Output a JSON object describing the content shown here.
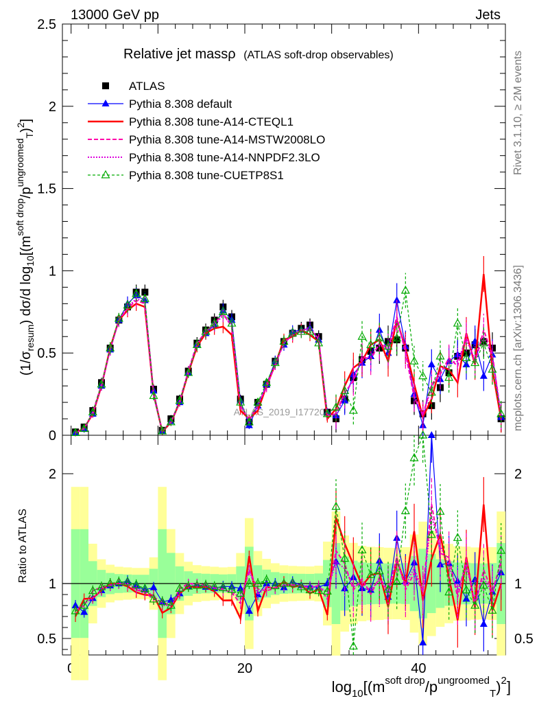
{
  "header": {
    "left": "13000 GeV pp",
    "right": "Jets"
  },
  "side_labels": {
    "rivet": "Rivet 3.1.10, ≥ 2M events",
    "mcplots": "mcplots.cern.ch [arXiv:1306.3436]"
  },
  "watermark": "ATLAS_2019_I1772062",
  "chart_data": {
    "type": "line",
    "title": "Relative jet massρ",
    "subtitle": "(ATLAS soft-drop observables)",
    "ylabel": "(1/σresum) dσ/d log10[(m^soft drop/pT^ungroomed)^2]",
    "ratio_ylabel": "Ratio to ATLAS",
    "xlabel": "log10[(m^soft drop/pT^ungroomed)^2]",
    "xlim": [
      -1,
      50
    ],
    "ylim": [
      0,
      2.5
    ],
    "ratio_ylim": [
      0.35,
      2.35
    ],
    "x_ticks": [
      0,
      20,
      40
    ],
    "y_ticks": [
      "0",
      "0.5",
      "1",
      "1.5",
      "2",
      "2.5"
    ],
    "ratio_ticks": [
      "0.5",
      "1",
      "2"
    ],
    "legend": [
      "ATLAS",
      "Pythia 8.308 default",
      "Pythia 8.308 tune-A14-CTEQL1",
      "Pythia 8.308 tune-A14-MSTW2008LO",
      "Pythia 8.308 tune-A14-NNPDF2.3LO",
      "Pythia 8.308 tune-CUETP8S1"
    ],
    "x": [
      0.5,
      1.5,
      2.5,
      3.5,
      4.5,
      5.5,
      6.5,
      7.5,
      8.5,
      9.5,
      10.5,
      11.5,
      12.5,
      13.5,
      14.5,
      15.5,
      16.5,
      17.5,
      18.5,
      19.5,
      20.5,
      21.5,
      22.5,
      23.5,
      24.5,
      25.5,
      26.5,
      27.5,
      28.5,
      29.5,
      30.5,
      31.5,
      32.5,
      33.5,
      34.5,
      35.5,
      36.5,
      37.5,
      38.5,
      39.5,
      40.5,
      41.5,
      42.5,
      43.5,
      44.5,
      45.5,
      46.5,
      47.5,
      48.5,
      49.5
    ],
    "series": [
      {
        "name": "ATLAS",
        "color": "#000000",
        "values": [
          0.02,
          0.05,
          0.15,
          0.32,
          0.53,
          0.7,
          0.78,
          0.87,
          0.87,
          0.28,
          0.03,
          0.1,
          0.22,
          0.39,
          0.56,
          0.64,
          0.7,
          0.78,
          0.72,
          0.22,
          0.08,
          0.2,
          0.31,
          0.45,
          0.57,
          0.62,
          0.65,
          0.67,
          0.6,
          0.14,
          0.1,
          0.22,
          0.35,
          0.46,
          0.51,
          0.53,
          0.57,
          0.58,
          0.53,
          0.21,
          0.13,
          0.18,
          0.29,
          0.38,
          0.48,
          0.5,
          0.55,
          0.57,
          0.53,
          0.1
        ]
      },
      {
        "name": "Pythia 8.308 default",
        "color": "#0000ff",
        "values": [
          0.016,
          0.037,
          0.13,
          0.3,
          0.52,
          0.7,
          0.8,
          0.85,
          0.82,
          0.27,
          0.025,
          0.085,
          0.2,
          0.38,
          0.55,
          0.62,
          0.67,
          0.76,
          0.7,
          0.21,
          0.06,
          0.18,
          0.31,
          0.45,
          0.55,
          0.63,
          0.64,
          0.65,
          0.58,
          0.14,
          0.12,
          0.21,
          0.37,
          0.44,
          0.48,
          0.64,
          0.5,
          0.82,
          0.54,
          0.25,
          0.06,
          0.43,
          0.34,
          0.45,
          0.49,
          0.43,
          0.57,
          0.36,
          0.49,
          0.11
        ]
      },
      {
        "name": "Pythia 8.308 tune-A14-CTEQL1",
        "color": "#ff0000",
        "values": [
          0.014,
          0.043,
          0.13,
          0.3,
          0.53,
          0.7,
          0.76,
          0.8,
          0.78,
          0.25,
          0.022,
          0.078,
          0.2,
          0.38,
          0.54,
          0.62,
          0.65,
          0.66,
          0.61,
          0.15,
          0.1,
          0.15,
          0.3,
          0.43,
          0.58,
          0.6,
          0.64,
          0.61,
          0.57,
          0.1,
          0.16,
          0.3,
          0.41,
          0.45,
          0.55,
          0.58,
          0.45,
          0.7,
          0.53,
          0.31,
          0.11,
          0.22,
          0.42,
          0.4,
          0.32,
          0.62,
          0.43,
          0.98,
          0.4,
          0.1
        ]
      },
      {
        "name": "Pythia 8.308 tune-A14-MSTW2008LO",
        "color": "#ff00aa",
        "values": [
          0.015,
          0.04,
          0.14,
          0.31,
          0.52,
          0.7,
          0.77,
          0.82,
          0.8,
          0.24,
          0.025,
          0.08,
          0.21,
          0.39,
          0.56,
          0.63,
          0.68,
          0.74,
          0.66,
          0.18,
          0.09,
          0.19,
          0.29,
          0.43,
          0.56,
          0.61,
          0.64,
          0.64,
          0.59,
          0.12,
          0.13,
          0.26,
          0.33,
          0.48,
          0.46,
          0.56,
          0.53,
          0.72,
          0.5,
          0.23,
          0.12,
          0.31,
          0.37,
          0.47,
          0.42,
          0.61,
          0.44,
          0.64,
          0.49,
          0.12
        ]
      },
      {
        "name": "Pythia 8.308 tune-A14-NNPDF2.3LO",
        "color": "#dd00dd",
        "values": [
          0.015,
          0.041,
          0.13,
          0.3,
          0.52,
          0.7,
          0.78,
          0.83,
          0.81,
          0.25,
          0.024,
          0.08,
          0.2,
          0.39,
          0.55,
          0.63,
          0.67,
          0.73,
          0.67,
          0.19,
          0.09,
          0.18,
          0.3,
          0.43,
          0.56,
          0.62,
          0.63,
          0.66,
          0.58,
          0.13,
          0.12,
          0.25,
          0.34,
          0.46,
          0.48,
          0.55,
          0.52,
          0.7,
          0.52,
          0.24,
          0.12,
          0.29,
          0.39,
          0.44,
          0.45,
          0.58,
          0.46,
          0.6,
          0.48,
          0.12
        ]
      },
      {
        "name": "Pythia 8.308 tune-CUETP8S1",
        "color": "#00aa00",
        "values": [
          0.015,
          0.04,
          0.14,
          0.31,
          0.53,
          0.71,
          0.79,
          0.86,
          0.83,
          0.24,
          0.025,
          0.08,
          0.21,
          0.38,
          0.55,
          0.63,
          0.68,
          0.75,
          0.68,
          0.2,
          0.08,
          0.2,
          0.32,
          0.44,
          0.57,
          0.62,
          0.63,
          0.63,
          0.56,
          0.13,
          0.17,
          0.27,
          0.15,
          0.6,
          0.55,
          0.59,
          0.54,
          0.59,
          0.88,
          0.45,
          0.36,
          0.26,
          0.48,
          0.35,
          0.68,
          0.47,
          0.44,
          0.56,
          0.4,
          0.13
        ]
      }
    ]
  }
}
